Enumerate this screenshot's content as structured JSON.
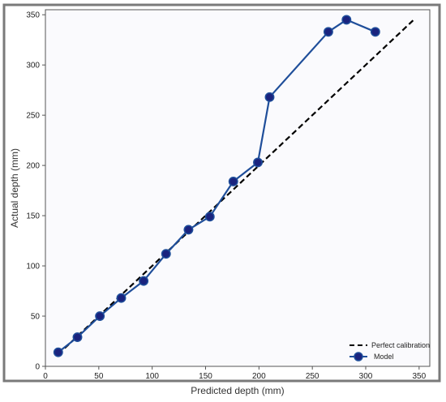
{
  "chart_data": {
    "type": "line",
    "xlabel": "Predicted depth (mm)",
    "ylabel": "Actual depth (mm)",
    "xlim": [
      0,
      360
    ],
    "ylim": [
      0,
      355
    ],
    "xticks": [
      0,
      50,
      100,
      150,
      200,
      250,
      300,
      350
    ],
    "yticks": [
      0,
      50,
      100,
      150,
      200,
      250,
      300,
      350
    ],
    "grid": false,
    "legend_position": "bottom-right",
    "series": [
      {
        "name": "Perfect calibration",
        "style": "dashed",
        "color": "#000000",
        "x": [
          12,
          345
        ],
        "y": [
          12,
          345
        ]
      },
      {
        "name": "Model",
        "style": "solid-markers",
        "color": "#1f4e9a",
        "marker_fill": "#1a237e",
        "x": [
          12,
          30,
          51,
          71,
          92,
          113,
          134,
          154,
          176,
          199,
          210,
          265,
          282,
          309
        ],
        "y": [
          14,
          29,
          50,
          68,
          85,
          112,
          136,
          149,
          184,
          203,
          268,
          333,
          345,
          333
        ]
      }
    ]
  }
}
